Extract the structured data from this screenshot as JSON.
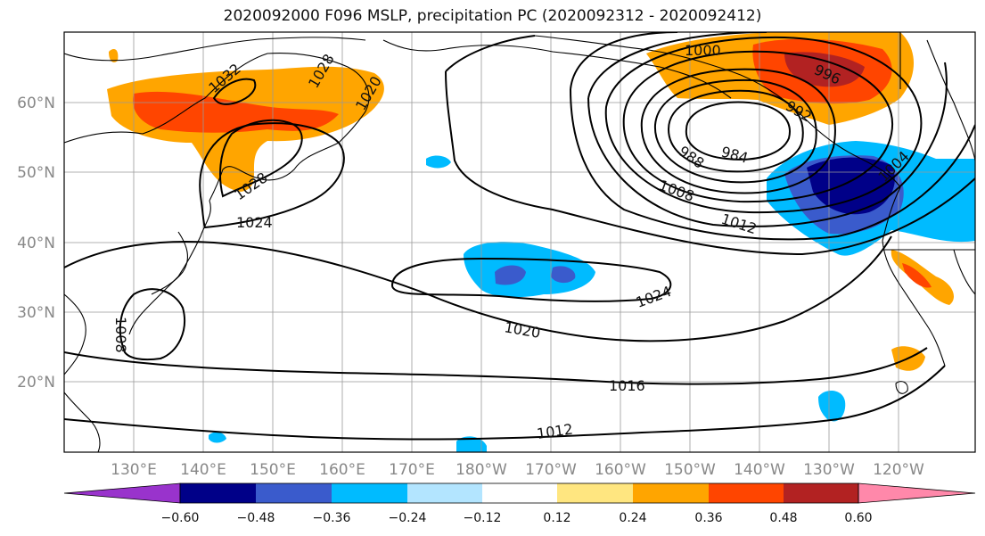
{
  "title": "2020092000 F096 MSLP, precipitation PC (2020092312 - 2020092412)",
  "map": {
    "lon_labels": [
      "130°E",
      "140°E",
      "150°E",
      "160°E",
      "170°E",
      "180°W",
      "170°W",
      "160°W",
      "150°W",
      "140°W",
      "130°W",
      "120°W"
    ],
    "lat_labels": [
      "60°N",
      "50°N",
      "40°N",
      "30°N",
      "20°N"
    ],
    "contour_labels": [
      "1000",
      "996",
      "984",
      "988",
      "1008",
      "1012",
      "1028",
      "1024",
      "1032",
      "1028",
      "1020",
      "1024",
      "1020",
      "1016",
      "1012",
      "1008",
      "1004",
      "992"
    ]
  },
  "colorbar": {
    "colors": [
      "#9933cc",
      "#000088",
      "#3a5bcc",
      "#00bbff",
      "#b3e5ff",
      "#ffffff",
      "#ffe680",
      "#ffa500",
      "#ff4500",
      "#b22222",
      "#ff88aa"
    ],
    "tick_labels": [
      "−0.60",
      "−0.48",
      "−0.36",
      "−0.24",
      "−0.12",
      "0.12",
      "0.24",
      "0.36",
      "0.48",
      "0.60"
    ]
  }
}
